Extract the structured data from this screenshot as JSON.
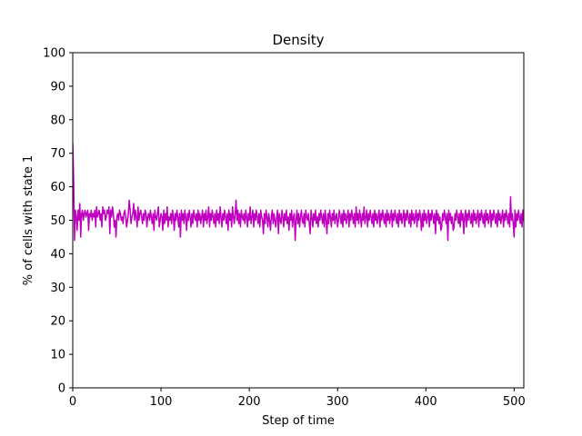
{
  "chart_data": {
    "type": "line",
    "title": "Density",
    "xlabel": "Step of time",
    "ylabel": "% of cells with state 1",
    "xlim": [
      0,
      511
    ],
    "ylim": [
      0,
      100
    ],
    "xticks": [
      0,
      100,
      200,
      300,
      400,
      500
    ],
    "yticks": [
      0,
      10,
      20,
      30,
      40,
      50,
      60,
      70,
      80,
      90,
      100
    ],
    "grid": false,
    "series": [
      {
        "color": "#bf00bf",
        "x_start": 0,
        "x_step": 1,
        "values": [
          73,
          62,
          44,
          53,
          51,
          47,
          53,
          50,
          55,
          45,
          52,
          53,
          50,
          52,
          53,
          51,
          52,
          53,
          47,
          52,
          51,
          53,
          50,
          52,
          51,
          53,
          48,
          54,
          51,
          52,
          53,
          50,
          52,
          48,
          54,
          52,
          53,
          50,
          51,
          53,
          52,
          54,
          46,
          53,
          51,
          54,
          52,
          48,
          50,
          45,
          51,
          52,
          50,
          53,
          52,
          50,
          51,
          49,
          52,
          53,
          51,
          48,
          50,
          52,
          56,
          53,
          49,
          51,
          52,
          55,
          50,
          53,
          51,
          48,
          54,
          50,
          52,
          53,
          51,
          49,
          52,
          50,
          53,
          52,
          48,
          51,
          52,
          50,
          53,
          51,
          49,
          52,
          47,
          53,
          51,
          50,
          52,
          54,
          48,
          50,
          52,
          51,
          47,
          53,
          49,
          52,
          50,
          54,
          48,
          51,
          50,
          52,
          49,
          53,
          51,
          47,
          52,
          50,
          53,
          51,
          48,
          52,
          45,
          53,
          50,
          52,
          49,
          53,
          51,
          47,
          52,
          50,
          53,
          51,
          48,
          52,
          49,
          53,
          51,
          50,
          52,
          48,
          53,
          50,
          52,
          49,
          51,
          53,
          48,
          52,
          50,
          53,
          49,
          51,
          54,
          48,
          52,
          50,
          53,
          51,
          49,
          52,
          48,
          53,
          50,
          52,
          49,
          54,
          51,
          48,
          52,
          50,
          53,
          51,
          49,
          52,
          47,
          53,
          50,
          52,
          48,
          54,
          51,
          49,
          52,
          56,
          50,
          53,
          49,
          52,
          48,
          53,
          51,
          50,
          52,
          49,
          53,
          51,
          48,
          52,
          50,
          54,
          49,
          51,
          53,
          48,
          52,
          50,
          53,
          51,
          49,
          52,
          48,
          53,
          51,
          50,
          46,
          52,
          49,
          53,
          51,
          48,
          52,
          50,
          47,
          51,
          53,
          49,
          52,
          50,
          48,
          51,
          53,
          46,
          52,
          50,
          49,
          53,
          51,
          48,
          52,
          50,
          53,
          49,
          51,
          47,
          52,
          50,
          53,
          48,
          51,
          52,
          44,
          50,
          53,
          49,
          52,
          48,
          51,
          53,
          50,
          49,
          52,
          48,
          53,
          51,
          50,
          52,
          49,
          46,
          53,
          51,
          48,
          52,
          50,
          53,
          49,
          51,
          48,
          52,
          50,
          53,
          51,
          49,
          52,
          48,
          53,
          50,
          46,
          52,
          49,
          53,
          51,
          48,
          52,
          50,
          53,
          49,
          51,
          52,
          48,
          50,
          53,
          51,
          49,
          52,
          48,
          53,
          50,
          52,
          49,
          51,
          53,
          48,
          52,
          50,
          53,
          51,
          49,
          52,
          48,
          54,
          50,
          52,
          49,
          53,
          51,
          48,
          52,
          50,
          54,
          49,
          51,
          53,
          48,
          52,
          50,
          53,
          51,
          49,
          52,
          48,
          53,
          50,
          52,
          49,
          51,
          53,
          48,
          52,
          50,
          53,
          51,
          49,
          52,
          48,
          53,
          50,
          52,
          49,
          51,
          53,
          48,
          52,
          50,
          53,
          51,
          49,
          52,
          48,
          53,
          50,
          52,
          49,
          51,
          53,
          48,
          52,
          50,
          53,
          51,
          49,
          52,
          48,
          53,
          50,
          52,
          49,
          51,
          53,
          48,
          52,
          50,
          53,
          51,
          47,
          52,
          48,
          53,
          50,
          52,
          49,
          51,
          53,
          48,
          52,
          50,
          53,
          51,
          49,
          52,
          46,
          53,
          50,
          52,
          49,
          51,
          47,
          48,
          52,
          50,
          53,
          51,
          49,
          52,
          44,
          53,
          50,
          52,
          49,
          51,
          47,
          48,
          52,
          50,
          53,
          51,
          49,
          52,
          48,
          53,
          50,
          52,
          46,
          51,
          53,
          48,
          52,
          50,
          53,
          51,
          49,
          52,
          48,
          53,
          50,
          52,
          49,
          51,
          53,
          48,
          52,
          50,
          53,
          51,
          49,
          52,
          48,
          53,
          50,
          52,
          49,
          51,
          53,
          48,
          52,
          50,
          53,
          51,
          49,
          52,
          48,
          53,
          50,
          52,
          49,
          51,
          53,
          48,
          52,
          50,
          53,
          51,
          49,
          52,
          48,
          57,
          50,
          52,
          49,
          45,
          53,
          48,
          52,
          50,
          53,
          51,
          49,
          52,
          48,
          53,
          50,
          52,
          49,
          51
        ]
      }
    ]
  }
}
